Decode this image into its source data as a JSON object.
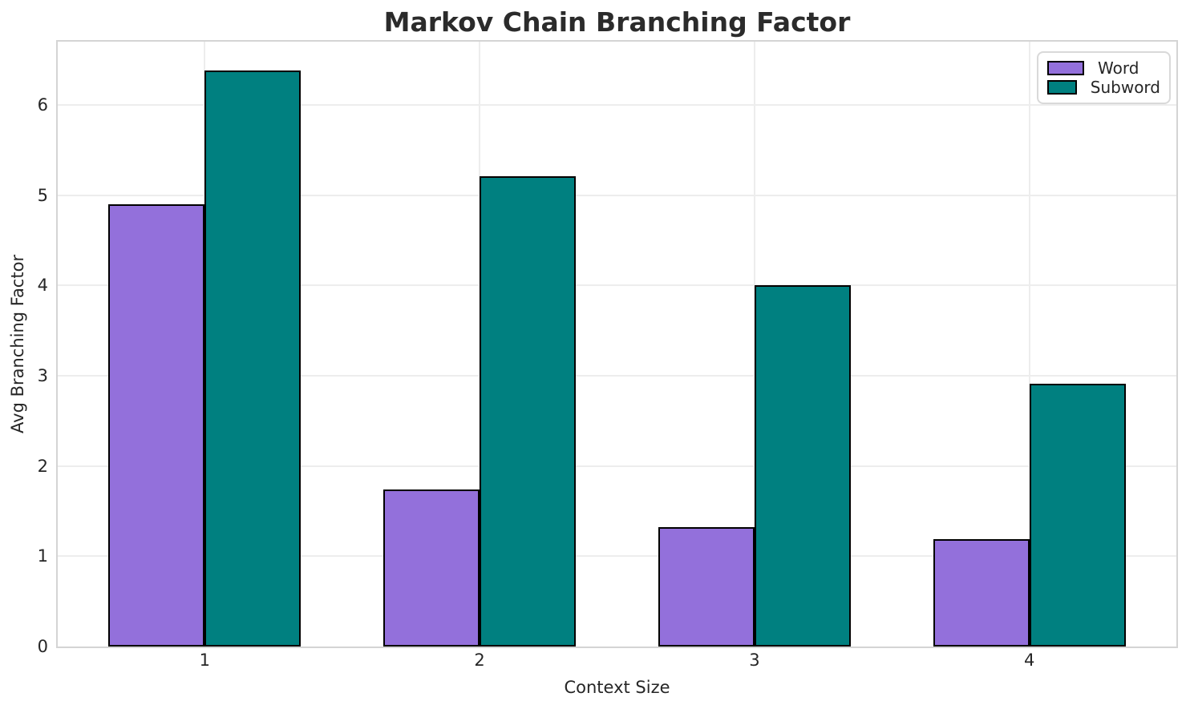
{
  "title": "Markov Chain Branching Factor",
  "chart_data": {
    "type": "bar",
    "title": "Markov Chain Branching Factor",
    "xlabel": "Context Size",
    "ylabel": "Avg Branching Factor",
    "categories": [
      "1",
      "2",
      "3",
      "4"
    ],
    "series": [
      {
        "name": "Word",
        "color": "#9370DB",
        "values": [
          4.9,
          1.74,
          1.32,
          1.19
        ]
      },
      {
        "name": "Subword",
        "color": "#008080",
        "values": [
          6.38,
          5.21,
          4.0,
          2.91
        ]
      }
    ],
    "ylim": [
      0,
      6.7
    ],
    "yticks": [
      0,
      1,
      2,
      3,
      4,
      5,
      6
    ],
    "grid": true,
    "grid_axes": "both",
    "legend_position": "upper right",
    "bar_edge_color": "#000000",
    "colors": {
      "grid": "#ededed",
      "spine": "#d4d4d4",
      "text": "#262626",
      "title": "#2b2b2b",
      "background": "#ffffff"
    }
  }
}
